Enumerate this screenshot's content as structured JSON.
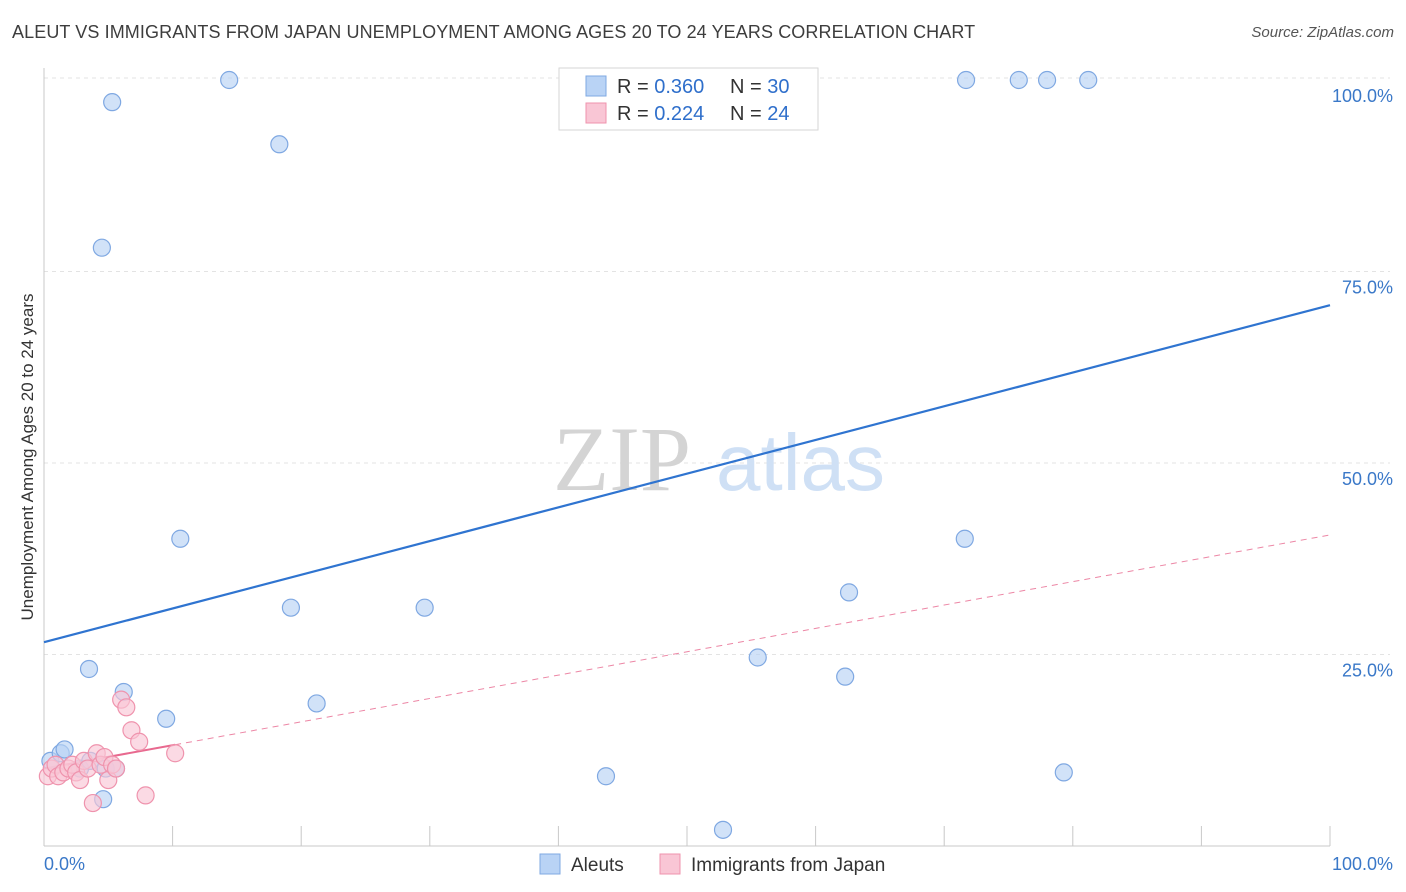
{
  "chart_data": {
    "type": "scatter",
    "title": "ALEUT VS IMMIGRANTS FROM JAPAN UNEMPLOYMENT AMONG AGES 20 TO 24 YEARS CORRELATION CHART",
    "source_label": "Source: ",
    "source_site": "ZipAtlas.com",
    "xlabel": "",
    "ylabel": "Unemployment Among Ages 20 to 24 years",
    "xlim": [
      0,
      100
    ],
    "ylim": [
      0,
      105
    ],
    "x_tick_labels": [
      {
        "value": 0,
        "label": "0.0%"
      },
      {
        "value": 100,
        "label": "100.0%"
      }
    ],
    "y_tick_labels": [
      {
        "value": 25,
        "label": "25.0%"
      },
      {
        "value": 50,
        "label": "50.0%"
      },
      {
        "value": 75,
        "label": "75.0%"
      },
      {
        "value": 100,
        "label": "100.0%"
      }
    ],
    "grid": true,
    "legend": [
      {
        "r_label": "R = ",
        "r_value": "0.360",
        "n_label": "N = ",
        "n_value": "30"
      },
      {
        "r_label": "R = ",
        "r_value": "0.224",
        "n_label": "N = ",
        "n_value": "24"
      }
    ],
    "watermark": {
      "zip": "ZIP",
      "atlas": "atlas"
    },
    "series": [
      {
        "name": "Aleuts",
        "fill": "#b9d3f5",
        "stroke": "#7fa8e2",
        "line_color": "#2f74d0",
        "trend": {
          "x0": 0,
          "y0": 27,
          "x1": 100,
          "y1": 71,
          "dashed_from": null
        },
        "points": [
          [
            0.5,
            11.5
          ],
          [
            1.3,
            12.5
          ],
          [
            1.6,
            13
          ],
          [
            2.8,
            10.5
          ],
          [
            3.6,
            11.5
          ],
          [
            4.8,
            10.5
          ],
          [
            5.6,
            10.5
          ],
          [
            3.5,
            23.5
          ],
          [
            6.2,
            20.5
          ],
          [
            4.6,
            6.5
          ],
          [
            9.5,
            17
          ],
          [
            5.3,
            97.5
          ],
          [
            4.5,
            78.5
          ],
          [
            14.4,
            100
          ],
          [
            18.3,
            92
          ],
          [
            10.6,
            40.5
          ],
          [
            19.2,
            31.5
          ],
          [
            21.2,
            19
          ],
          [
            29.6,
            31.5
          ],
          [
            43.7,
            9.5
          ],
          [
            52.8,
            2.5
          ],
          [
            55.5,
            25
          ],
          [
            62.3,
            22.5
          ],
          [
            62.6,
            33.5
          ],
          [
            71.6,
            40.5
          ],
          [
            71.7,
            100
          ],
          [
            75.8,
            100
          ],
          [
            78.0,
            100
          ],
          [
            81.2,
            100
          ],
          [
            79.3,
            10
          ]
        ]
      },
      {
        "name": "Immigrants from Japan",
        "fill": "#f9c6d5",
        "stroke": "#ef93ad",
        "line_color": "#e8698f",
        "trend": {
          "x0": 0,
          "y0": 10.5,
          "x1": 100,
          "y1": 41,
          "solid_until": 10.2
        },
        "points": [
          [
            0.3,
            9.5
          ],
          [
            0.6,
            10.5
          ],
          [
            0.9,
            11
          ],
          [
            1.1,
            9.5
          ],
          [
            1.5,
            10
          ],
          [
            1.9,
            10.5
          ],
          [
            2.2,
            11
          ],
          [
            2.5,
            10
          ],
          [
            2.8,
            9
          ],
          [
            3.1,
            11.5
          ],
          [
            3.4,
            10.5
          ],
          [
            3.8,
            6
          ],
          [
            4.1,
            12.5
          ],
          [
            4.4,
            11
          ],
          [
            4.7,
            12
          ],
          [
            5.0,
            9
          ],
          [
            5.3,
            11
          ],
          [
            5.6,
            10.5
          ],
          [
            6.0,
            19.5
          ],
          [
            6.4,
            18.5
          ],
          [
            6.8,
            15.5
          ],
          [
            7.4,
            14
          ],
          [
            7.9,
            7
          ],
          [
            10.2,
            12.5
          ]
        ]
      }
    ]
  }
}
